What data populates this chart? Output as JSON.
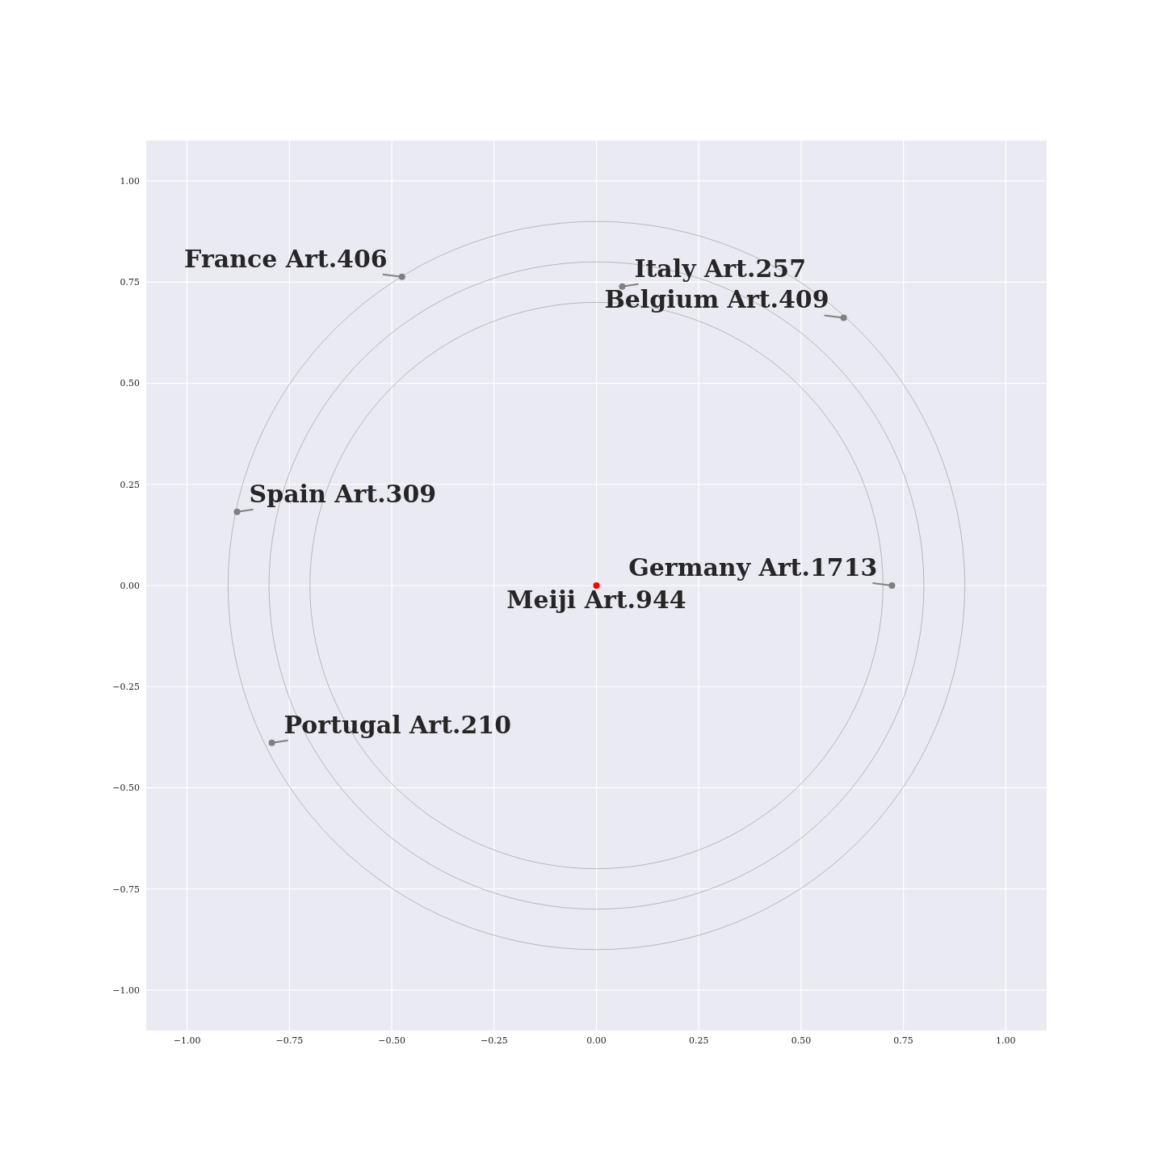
{
  "chart_data": {
    "type": "scatter",
    "xlim": [
      -1.1,
      1.1
    ],
    "ylim": [
      -1.1,
      1.1
    ],
    "xticks": [
      {
        "value": -1,
        "label": "−1.00"
      },
      {
        "value": -0.75,
        "label": "−0.75"
      },
      {
        "value": -0.5,
        "label": "−0.50"
      },
      {
        "value": -0.25,
        "label": "−0.25"
      },
      {
        "value": 0,
        "label": "0.00"
      },
      {
        "value": 0.25,
        "label": "0.25"
      },
      {
        "value": 0.5,
        "label": "0.50"
      },
      {
        "value": 0.75,
        "label": "0.75"
      },
      {
        "value": 1,
        "label": "1.00"
      }
    ],
    "yticks": [
      {
        "value": -1,
        "label": "−1.00"
      },
      {
        "value": -0.75,
        "label": "−0.75"
      },
      {
        "value": -0.5,
        "label": "−0.50"
      },
      {
        "value": -0.25,
        "label": "−0.25"
      },
      {
        "value": 0,
        "label": "0.00"
      },
      {
        "value": 0.25,
        "label": "0.25"
      },
      {
        "value": 0.5,
        "label": "0.50"
      },
      {
        "value": 0.75,
        "label": "0.75"
      },
      {
        "value": 1,
        "label": "1.00"
      }
    ],
    "grid": true,
    "marker": "circle",
    "series": [
      {
        "type": "scatter",
        "x": [
          0,
          0.722,
          0.604,
          0.063,
          -0.475,
          -0.878,
          -0.793
        ],
        "values": [
          0,
          0,
          0.662,
          0.739,
          0.763,
          0.182,
          -0.389
        ],
        "colors": [
          "#ff0000",
          "#808080",
          "#808080",
          "#808080",
          "#808080",
          "#808080",
          "#808080"
        ]
      }
    ],
    "annotations": [
      {
        "text": "Meiji Art.944",
        "x": 0,
        "y": 0
      },
      {
        "text": "Germany Art.1713",
        "x": 0.722,
        "y": 0
      },
      {
        "text": "Belgium Art.409",
        "x": 0.604,
        "y": 0.662
      },
      {
        "text": "Italy Art.257",
        "x": 0.063,
        "y": 0.739
      },
      {
        "text": "France Art.406",
        "x": -0.475,
        "y": 0.763
      },
      {
        "text": "Spain Art.309",
        "x": -0.878,
        "y": 0.182
      },
      {
        "text": "Portugal Art.210",
        "x": -0.793,
        "y": -0.389
      }
    ]
  }
}
